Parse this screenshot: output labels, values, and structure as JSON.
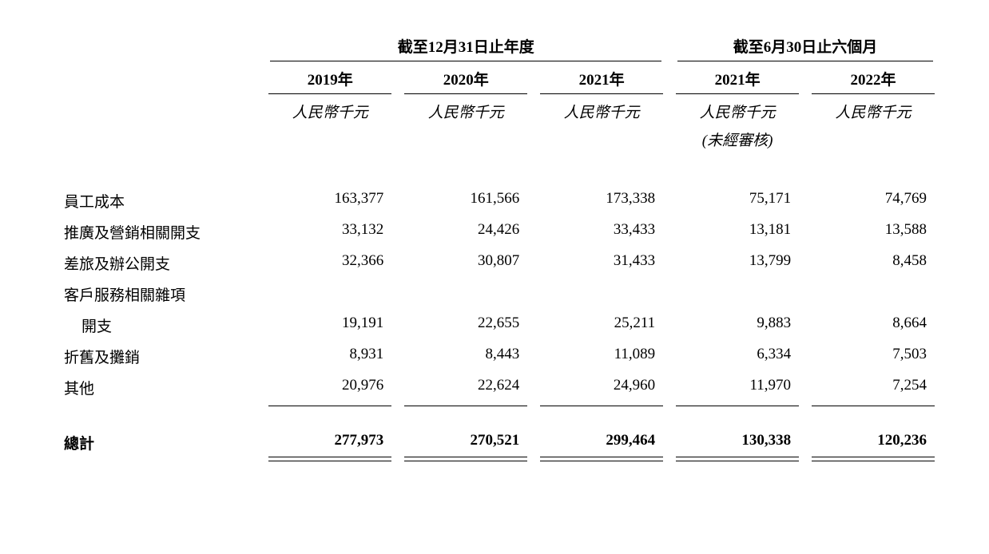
{
  "table": {
    "type": "table",
    "header_group_1": "截至12月31日止年度",
    "header_group_2": "截至6月30日止六個月",
    "years": {
      "y2019": "2019年",
      "y2020": "2020年",
      "y2021": "2021年",
      "y2021h": "2021年",
      "y2022h": "2022年"
    },
    "unit_label": "人民幣千元",
    "unaudited_note": "(未經審核)",
    "rows": [
      {
        "label": "員工成本",
        "v1": "163,377",
        "v2": "161,566",
        "v3": "173,338",
        "v4": "75,171",
        "v5": "74,769"
      },
      {
        "label": "推廣及營銷相關開支",
        "v1": "33,132",
        "v2": "24,426",
        "v3": "33,433",
        "v4": "13,181",
        "v5": "13,588"
      },
      {
        "label": "差旅及辦公開支",
        "v1": "32,366",
        "v2": "30,807",
        "v3": "31,433",
        "v4": "13,799",
        "v5": "8,458"
      },
      {
        "label": "客戶服務相關雜項",
        "label2": "開支",
        "multiline": true,
        "v1": "19,191",
        "v2": "22,655",
        "v3": "25,211",
        "v4": "9,883",
        "v5": "8,664"
      },
      {
        "label": "折舊及攤銷",
        "v1": "8,931",
        "v2": "8,443",
        "v3": "11,089",
        "v4": "6,334",
        "v5": "7,503"
      },
      {
        "label": "其他",
        "v1": "20,976",
        "v2": "22,624",
        "v3": "24,960",
        "v4": "11,970",
        "v5": "7,254"
      }
    ],
    "total": {
      "label": "總計",
      "v1": "277,973",
      "v2": "270,521",
      "v3": "299,464",
      "v4": "130,338",
      "v5": "120,236"
    },
    "styling": {
      "background_color": "#ffffff",
      "text_color": "#000000",
      "border_color": "#000000",
      "font_size_base": 19,
      "font_family": "serif",
      "col_widths_percent": [
        24,
        15.2,
        15.2,
        15.2,
        15.2,
        15.2
      ],
      "alignment": [
        "left",
        "right",
        "right",
        "right",
        "right",
        "right"
      ]
    }
  }
}
